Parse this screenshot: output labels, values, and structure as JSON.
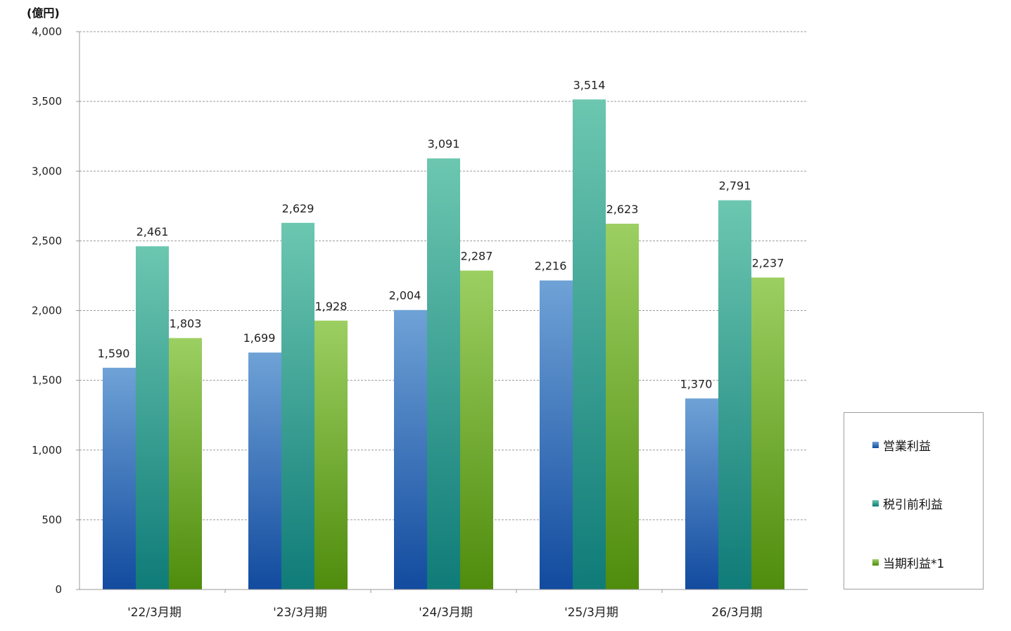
{
  "chart_data": {
    "type": "bar",
    "unit_label": "(億円)",
    "categories": [
      "'22/3月期",
      "'23/3月期",
      "'24/3月期",
      "'25/3月期",
      "26/3月期"
    ],
    "series": [
      {
        "name": "営業利益",
        "values": [
          1590,
          1699,
          2004,
          2216,
          1370
        ],
        "value_labels": [
          "1,590",
          "1,699",
          "2,004",
          "2,216",
          "1,370"
        ],
        "color_top": "#6fa2d6",
        "color_bottom": "#124b9f"
      },
      {
        "name": "税引前利益",
        "values": [
          2461,
          2629,
          3091,
          3514,
          2791
        ],
        "value_labels": [
          "2,461",
          "2,629",
          "3,091",
          "3,514",
          "2,791"
        ],
        "color_top": "#6cc7b0",
        "color_bottom": "#0f7b78"
      },
      {
        "name": "当期利益*1",
        "values": [
          1803,
          1928,
          2287,
          2623,
          2237
        ],
        "value_labels": [
          "1,803",
          "1,928",
          "2,287",
          "2,623",
          "2,237"
        ],
        "color_top": "#9ccf62",
        "color_bottom": "#4f8c0c"
      }
    ],
    "ylim": [
      0,
      4000
    ],
    "yticks": [
      0,
      500,
      1000,
      1500,
      2000,
      2500,
      3000,
      3500,
      4000
    ],
    "ytick_labels": [
      "0",
      "500",
      "1,000",
      "1,500",
      "2,000",
      "2,500",
      "3,000",
      "3,500",
      "4,000"
    ],
    "grid": true,
    "legend_position": "bottom-right"
  }
}
